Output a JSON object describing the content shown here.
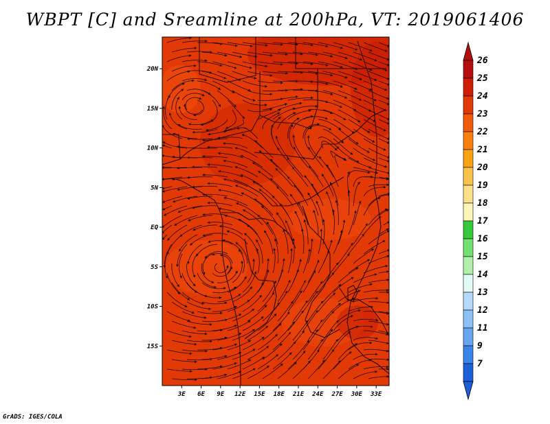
{
  "title": "WBPT [C] and Sreamline at 200hPa, VT: 2019061406",
  "footer": "GrADS: IGES/COLA",
  "map": {
    "lon_range": [
      0,
      35
    ],
    "lat_range": [
      -20,
      24
    ],
    "lat_ticks": [
      {
        "value": 20,
        "label": "20N"
      },
      {
        "value": 15,
        "label": "15N"
      },
      {
        "value": 10,
        "label": "10N"
      },
      {
        "value": 5,
        "label": "5N"
      },
      {
        "value": 0,
        "label": "EQ"
      },
      {
        "value": -5,
        "label": "5S"
      },
      {
        "value": -10,
        "label": "10S"
      },
      {
        "value": -15,
        "label": "15S"
      }
    ],
    "lon_ticks": [
      {
        "value": 3,
        "label": "3E"
      },
      {
        "value": 6,
        "label": "6E"
      },
      {
        "value": 9,
        "label": "9E"
      },
      {
        "value": 12,
        "label": "12E"
      },
      {
        "value": 15,
        "label": "15E"
      },
      {
        "value": 18,
        "label": "18E"
      },
      {
        "value": 21,
        "label": "21E"
      },
      {
        "value": 24,
        "label": "24E"
      },
      {
        "value": 27,
        "label": "27E"
      },
      {
        "value": 30,
        "label": "30E"
      },
      {
        "value": 33,
        "label": "33E"
      }
    ],
    "colors": {
      "field_base": "#e23a06",
      "field_warm": "#c41a04",
      "field_cool": "#f04f10",
      "streamline": "#1a0500",
      "border": "#2a0800"
    }
  },
  "colorbar": {
    "levels": [
      {
        "label": "26",
        "color": "#b50e0e"
      },
      {
        "label": "25",
        "color": "#d01e05"
      },
      {
        "label": "24",
        "color": "#e23a06"
      },
      {
        "label": "23",
        "color": "#f25b0b"
      },
      {
        "label": "22",
        "color": "#f97f0f"
      },
      {
        "label": "21",
        "color": "#f9a214"
      },
      {
        "label": "20",
        "color": "#f9c24a"
      },
      {
        "label": "19",
        "color": "#fde08a"
      },
      {
        "label": "18",
        "color": "#fdf6b8"
      },
      {
        "label": "17",
        "color": "#37c83c"
      },
      {
        "label": "16",
        "color": "#73e070"
      },
      {
        "label": "15",
        "color": "#b0f0ab"
      },
      {
        "label": "14",
        "color": "#e2fbf6"
      },
      {
        "label": "13",
        "color": "#b4d9f9"
      },
      {
        "label": "12",
        "color": "#8ec1f6"
      },
      {
        "label": "11",
        "color": "#67a5f1"
      },
      {
        "label": "9",
        "color": "#3a85ea"
      },
      {
        "label": "7",
        "color": "#1d5fd6"
      }
    ],
    "top_arrow_color": "#b50e0e",
    "bottom_arrow_color": "#1d5fd6"
  }
}
